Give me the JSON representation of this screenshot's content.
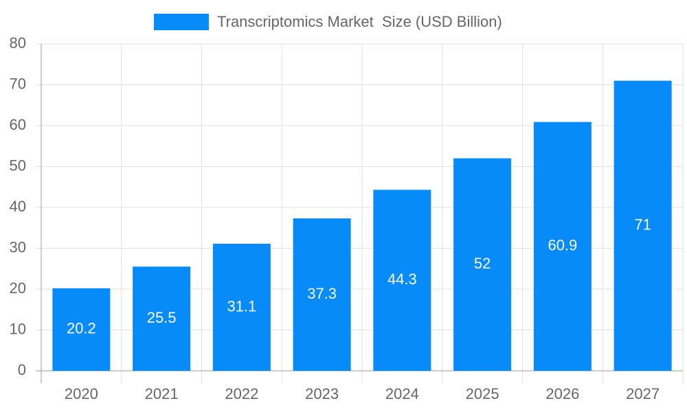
{
  "chart_data": {
    "type": "bar",
    "categories": [
      "2020",
      "2021",
      "2022",
      "2023",
      "2024",
      "2025",
      "2026",
      "2027"
    ],
    "series": [
      {
        "name": "Transcriptomics Market  Size (USD Billion)",
        "color": "#078bf8",
        "values": [
          20.2,
          25.5,
          31.1,
          37.3,
          44.3,
          52,
          60.9,
          71
        ]
      }
    ],
    "ylim": [
      0,
      80
    ],
    "yticks": [
      0,
      10,
      20,
      30,
      40,
      50,
      60,
      70,
      80
    ],
    "grid": true
  }
}
